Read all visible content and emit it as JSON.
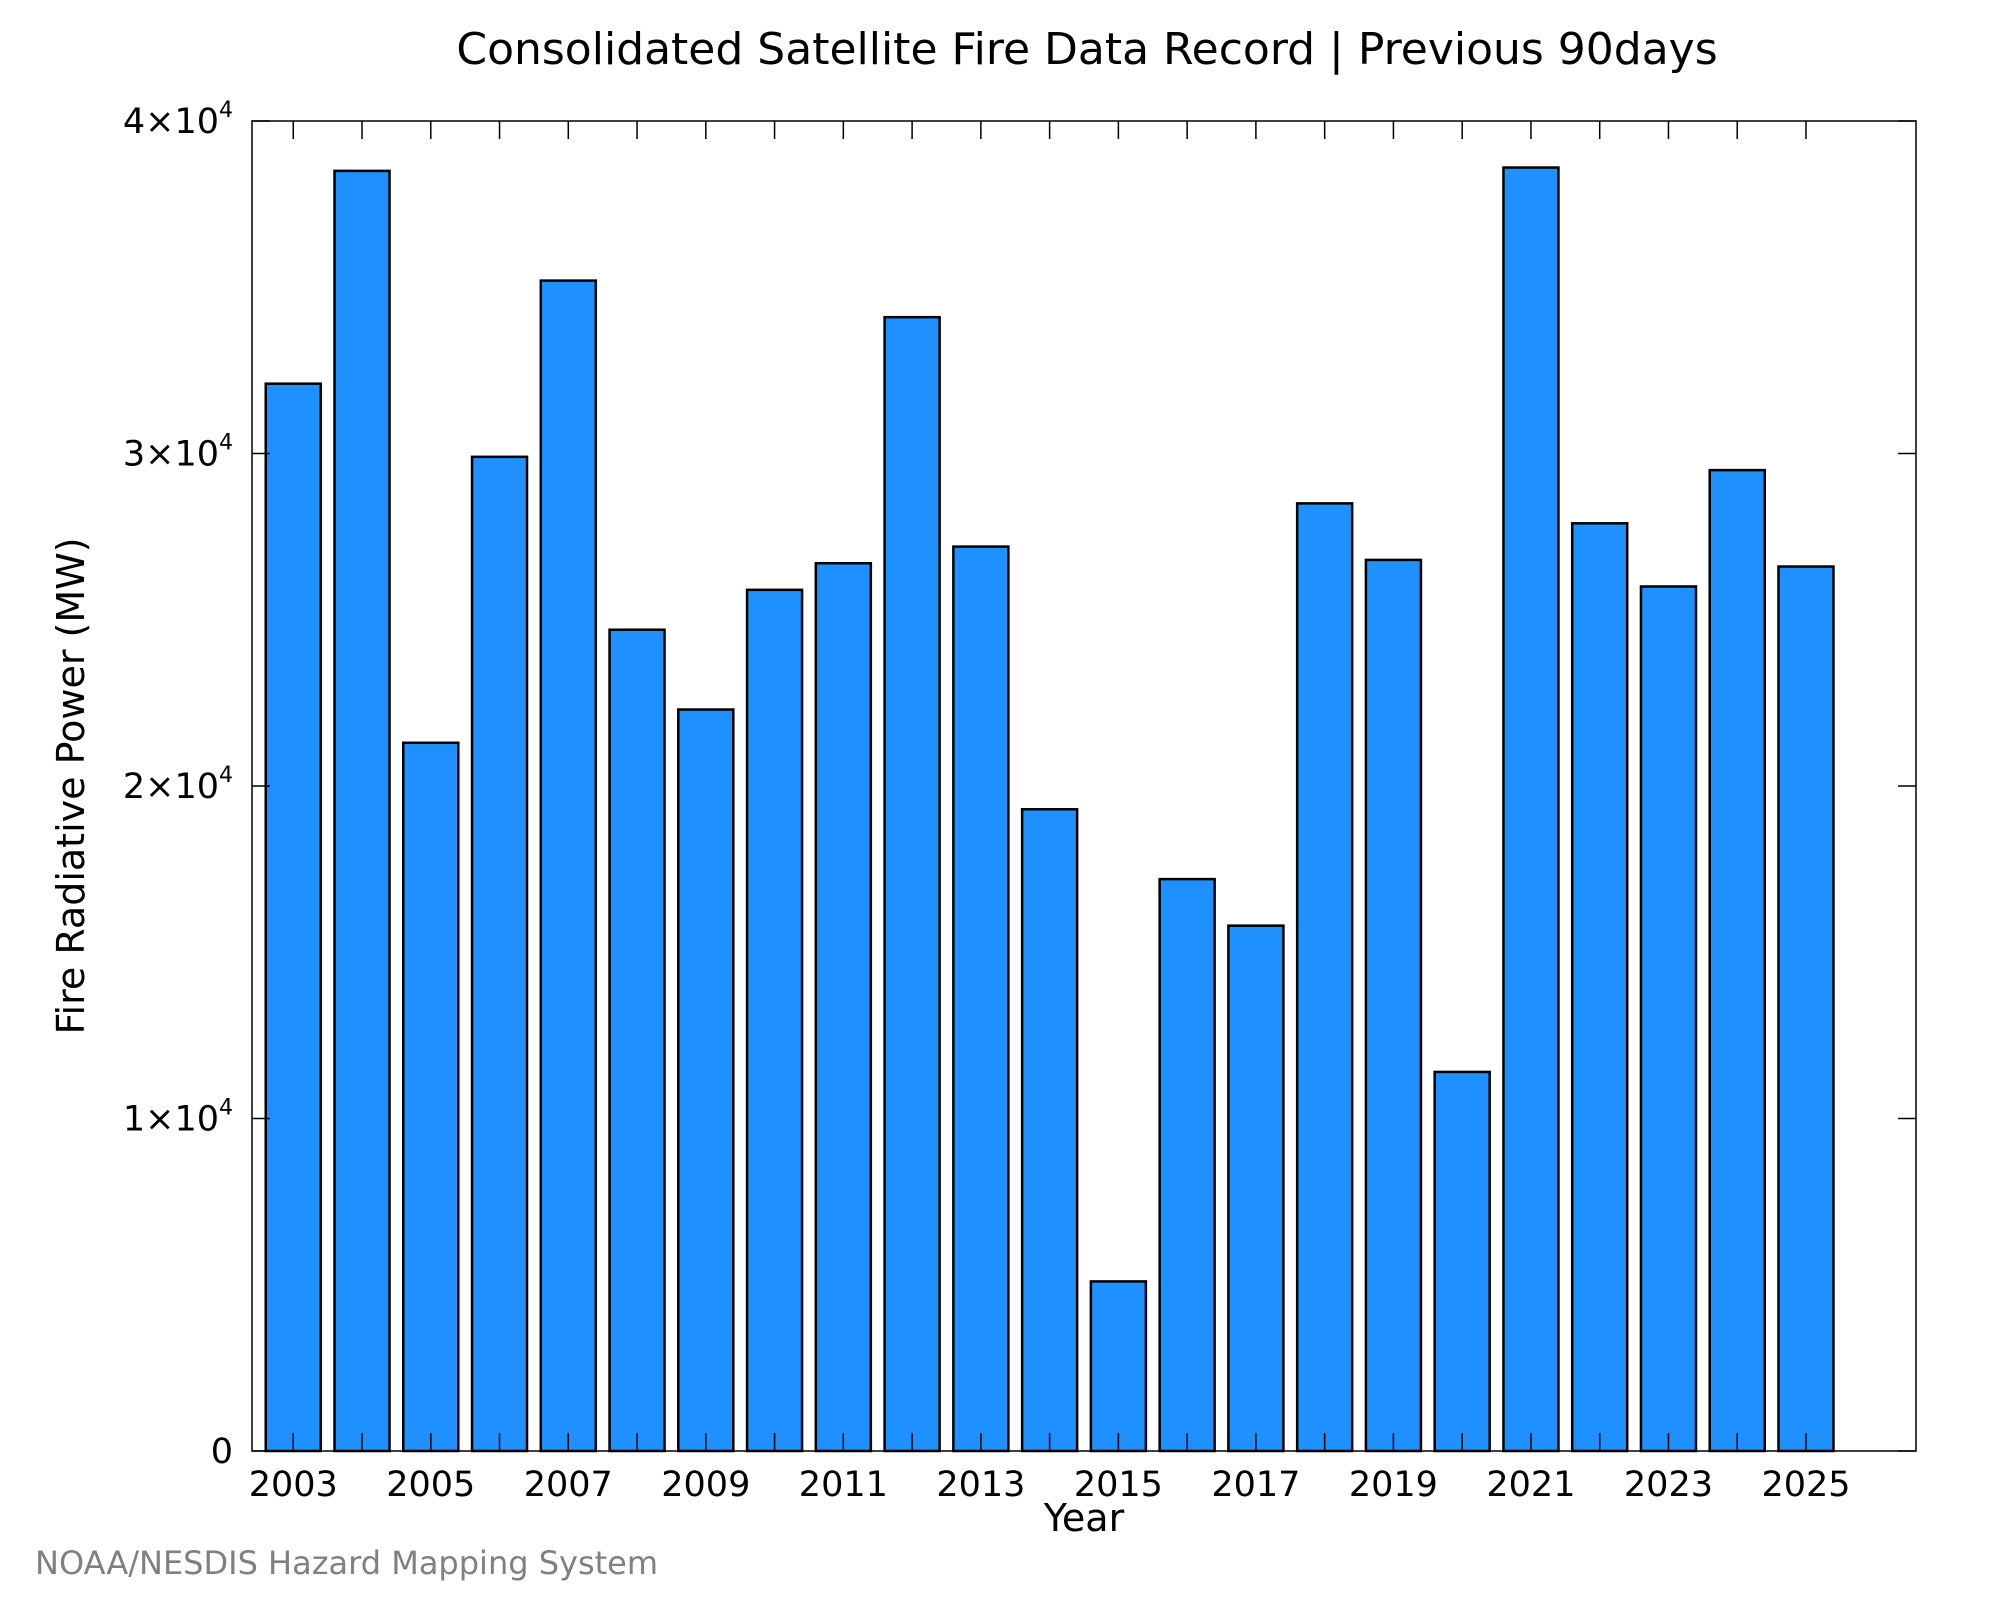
{
  "credit": "NOAA/NESDIS Hazard Mapping System",
  "colors": {
    "bar_fill": "#1e90ff",
    "bar_stroke": "#000000",
    "axis": "#000000",
    "credit": "#808080"
  },
  "chart_data": {
    "type": "bar",
    "title": "Consolidated Satellite Fire Data Record | Previous 90days",
    "xlabel": "Year",
    "ylabel": "Fire Radiative Power (MW)",
    "categories": [
      2003,
      2004,
      2005,
      2006,
      2007,
      2008,
      2009,
      2010,
      2011,
      2012,
      2013,
      2014,
      2015,
      2016,
      2017,
      2018,
      2019,
      2020,
      2021,
      2022,
      2023,
      2024,
      2025
    ],
    "values": [
      32100,
      38500,
      21300,
      29900,
      35200,
      24700,
      22300,
      25900,
      26700,
      34100,
      27200,
      19300,
      5100,
      17200,
      15800,
      28500,
      26800,
      11400,
      38600,
      27900,
      26000,
      29500,
      26600
    ],
    "x_ticks": [
      "2003",
      "2005",
      "2007",
      "2009",
      "2011",
      "2013",
      "2015",
      "2017",
      "2019",
      "2021",
      "2023",
      "2025"
    ],
    "y_ticks": [
      {
        "value": 0,
        "mantissa": "0",
        "exponent": ""
      },
      {
        "value": 10000,
        "mantissa": "1×10",
        "exponent": "4"
      },
      {
        "value": 20000,
        "mantissa": "2×10",
        "exponent": "4"
      },
      {
        "value": 30000,
        "mantissa": "3×10",
        "exponent": "4"
      },
      {
        "value": 40000,
        "mantissa": "4×10",
        "exponent": "4"
      }
    ],
    "ylim": [
      0,
      40000
    ],
    "xlim": [
      2002.4,
      2026.6
    ],
    "grid": false,
    "legend": "none"
  }
}
